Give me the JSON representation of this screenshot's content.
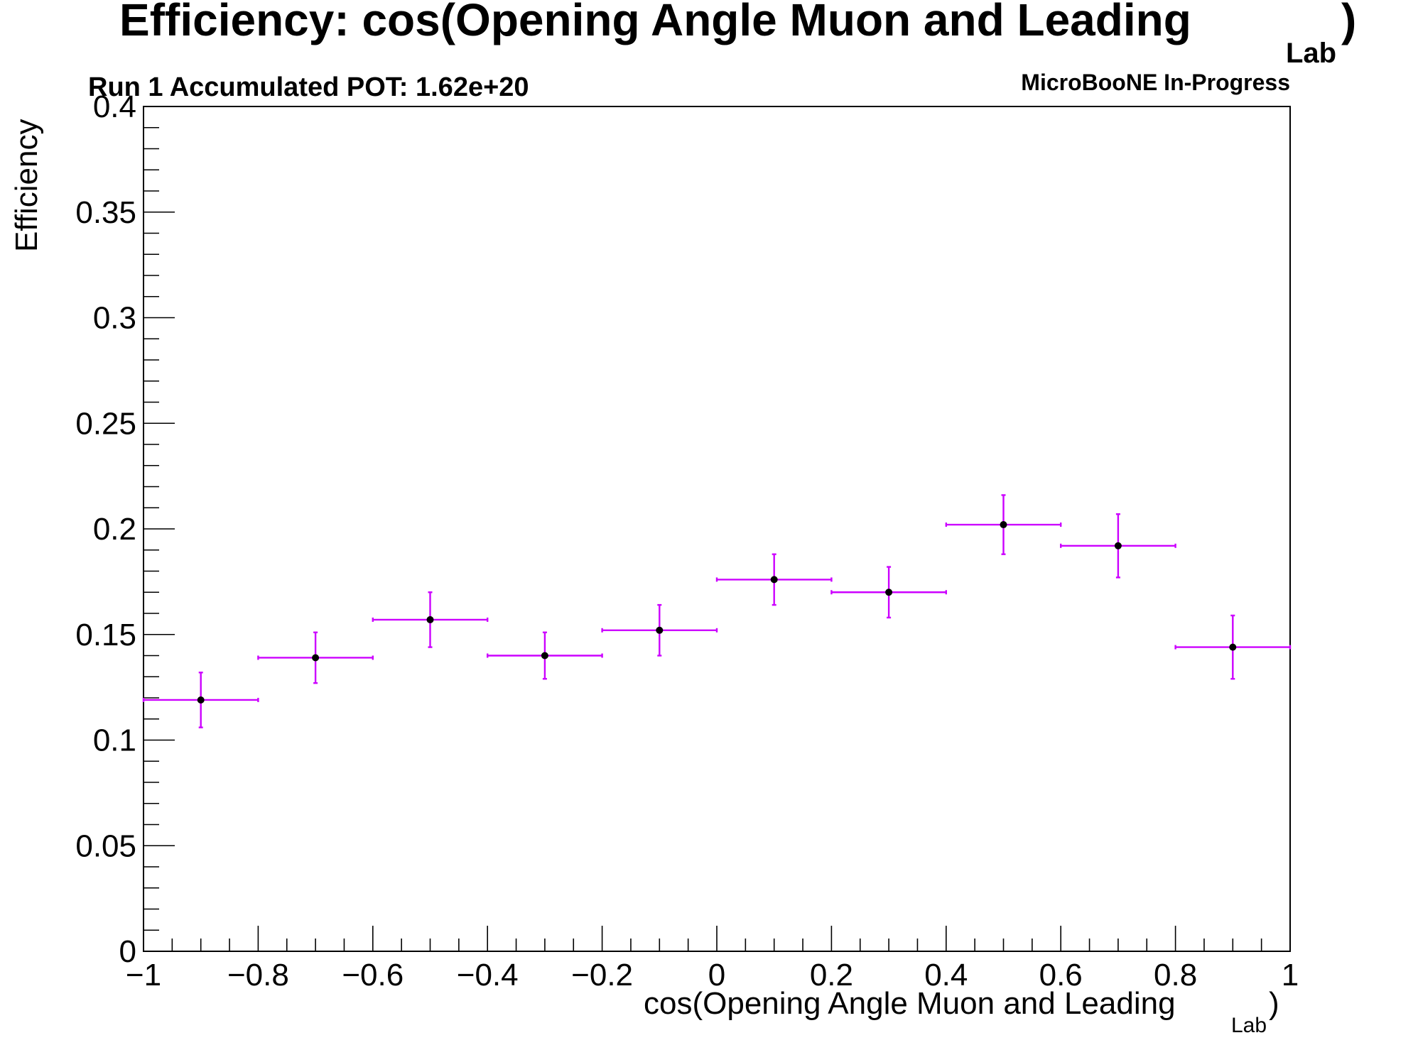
{
  "header": {
    "title_main": "Efficiency: cos(Opening Angle Muon and Leading",
    "title_sub": "Lab",
    "title_close": ")",
    "pot_label": "Run 1 Accumulated POT: 1.62e+20",
    "experiment_label": "MicroBooNE In-Progress"
  },
  "chart_data": {
    "type": "scatter",
    "title": "Efficiency: cos(Opening Angle Muon and Leading Lab)",
    "xlabel": "cos(Opening Angle Muon and Leading",
    "xlabel_sub": "Lab",
    "xlabel_close": ")",
    "ylabel": "Efficiency",
    "xlim": [
      -1,
      1
    ],
    "ylim": [
      0,
      0.4
    ],
    "x_ticks": [
      "−1",
      "−0.8",
      "−0.6",
      "−0.4",
      "−0.2",
      "0",
      "0.2",
      "0.4",
      "0.6",
      "0.8",
      "1"
    ],
    "y_ticks": [
      "0",
      "0.05",
      "0.1",
      "0.15",
      "0.2",
      "0.25",
      "0.3",
      "0.35",
      "0.4"
    ],
    "grid": false,
    "marker_color": "#000000",
    "error_color": "#cc00ff",
    "series": [
      {
        "x": [
          -0.9,
          -0.7,
          -0.5,
          -0.3,
          -0.1,
          0.1,
          0.3,
          0.5,
          0.7,
          0.9
        ],
        "x_err": [
          0.1,
          0.1,
          0.1,
          0.1,
          0.1,
          0.1,
          0.1,
          0.1,
          0.1,
          0.1
        ],
        "y": [
          0.119,
          0.139,
          0.157,
          0.14,
          0.152,
          0.176,
          0.17,
          0.202,
          0.192,
          0.144
        ],
        "y_err": [
          0.013,
          0.012,
          0.013,
          0.011,
          0.012,
          0.012,
          0.012,
          0.014,
          0.015,
          0.015
        ]
      }
    ]
  }
}
